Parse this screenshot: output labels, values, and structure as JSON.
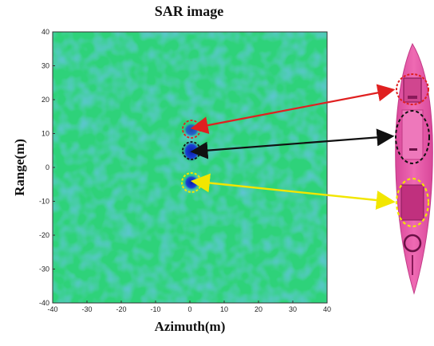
{
  "figure": {
    "title": "SAR image",
    "xlabel": "Azimuth(m)",
    "ylabel": "Range(m)"
  },
  "axes": {
    "xlim": [
      -40,
      40
    ],
    "ylim": [
      -40,
      40
    ],
    "xticks": [
      "-40",
      "-30",
      "-20",
      "-10",
      "0",
      "10",
      "20",
      "30",
      "40"
    ],
    "yticks": [
      "40",
      "30",
      "20",
      "10",
      "0",
      "-10",
      "-20",
      "-30",
      "-40"
    ]
  },
  "colors": {
    "background_field": "#2fd27a",
    "target_blue": "#1a3fd6",
    "ship_pink": "#e85aa6",
    "ship_dark": "#8a1a5a",
    "red_marker": "#e02020",
    "black_marker": "#111111",
    "yellow_marker": "#f2e600"
  },
  "targets": [
    {
      "name": "top",
      "x": 0,
      "y": 11,
      "circle_color": "red_marker"
    },
    {
      "name": "middle",
      "x": 0,
      "y": 5,
      "circle_color": "black_marker"
    },
    {
      "name": "bottom",
      "x": 0,
      "y": -5,
      "circle_color": "yellow_marker"
    }
  ]
}
